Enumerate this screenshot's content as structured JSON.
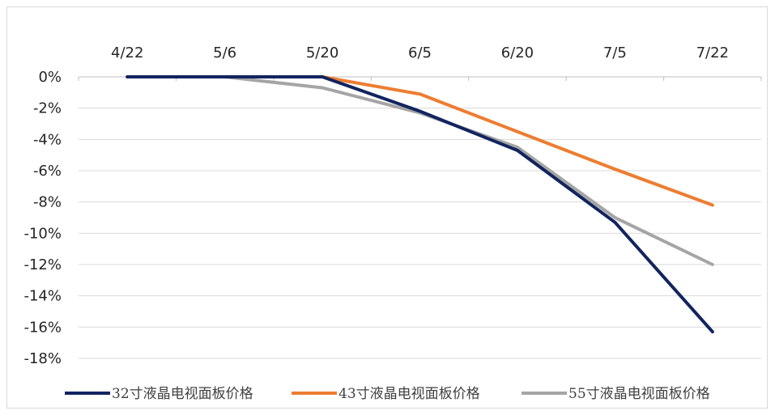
{
  "chart_data": {
    "type": "line",
    "title": "",
    "xlabel": "",
    "ylabel": "",
    "categories": [
      "4/22",
      "5/6",
      "5/20",
      "6/5",
      "6/20",
      "7/5",
      "7/22"
    ],
    "y_tick_labels": [
      "0%",
      "-2%",
      "-4%",
      "-6%",
      "-8%",
      "-10%",
      "-12%",
      "-14%",
      "-16%",
      "-18%"
    ],
    "ylim": [
      -18,
      0
    ],
    "x_axis_position": "top",
    "grid": true,
    "legend_position": "bottom",
    "series": [
      {
        "name": "32寸液晶电视面板价格",
        "color": "#12245f",
        "values": [
          0,
          0,
          0,
          -2.2,
          -4.7,
          -9.3,
          -16.3
        ]
      },
      {
        "name": "43寸液晶电视面板价格",
        "color": "#ed7d31",
        "values": [
          0,
          0,
          0,
          -1.1,
          -3.5,
          -5.9,
          -8.2
        ]
      },
      {
        "name": "55寸液晶电视面板价格",
        "color": "#a5a5a5",
        "values": [
          0,
          0,
          -0.7,
          -2.3,
          -4.5,
          -9.0,
          -12.0
        ]
      }
    ]
  }
}
